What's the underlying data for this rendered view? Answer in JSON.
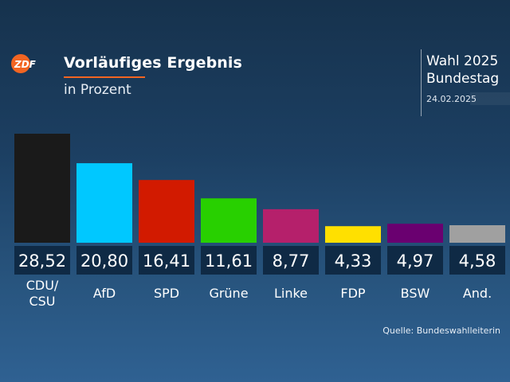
{
  "header": {
    "logo_text": "ZDF",
    "title": "Vorläufiges Ergebnis",
    "subtitle": "in Prozent",
    "election_title": "Wahl 2025 Bundestag",
    "election_date": "24.02.2025",
    "accent_color": "#f26522"
  },
  "footer": {
    "source": "Quelle: Bundeswahlleiterin"
  },
  "chart_data": {
    "type": "bar",
    "categories": [
      "CDU/\nCSU",
      "AfD",
      "SPD",
      "Grüne",
      "Linke",
      "FDP",
      "BSW",
      "And."
    ],
    "values": [
      28.52,
      20.8,
      16.41,
      11.61,
      8.77,
      4.33,
      4.97,
      4.58
    ],
    "value_labels": [
      "28,52",
      "20,80",
      "16,41",
      "11,61",
      "8,77",
      "4,33",
      "4,97",
      "4,58"
    ],
    "colors": [
      "#1a1a1a",
      "#00c8ff",
      "#d21a00",
      "#28d000",
      "#b5206b",
      "#ffe000",
      "#6a0070",
      "#a0a0a0"
    ],
    "title": "Vorläufiges Ergebnis",
    "ylabel": "in Prozent",
    "ylim": [
      0,
      28.52
    ],
    "grid": false,
    "legend": "none"
  }
}
